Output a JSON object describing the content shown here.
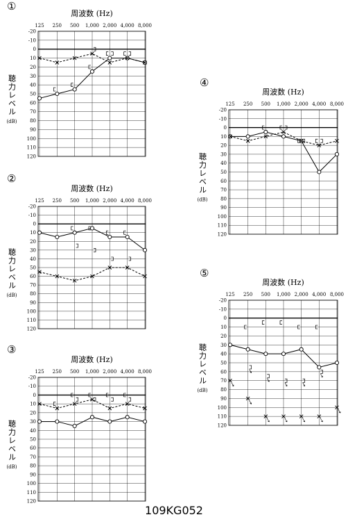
{
  "chart_data": [
    {
      "type": "line",
      "panel": "①",
      "title": "周波数 (Hz)",
      "ylabel": "聴力レベル",
      "yunit": "(dB)",
      "categories": [
        "125",
        "250",
        "500",
        "1,000",
        "2,000",
        "4,000",
        "8,000"
      ],
      "ylim": [
        -20,
        120
      ],
      "yticks": [
        -20,
        -10,
        0,
        10,
        20,
        30,
        40,
        50,
        60,
        70,
        80,
        90,
        100,
        110,
        120
      ],
      "grid": true,
      "series": [
        {
          "marker": "o",
          "dash": false,
          "connected": true,
          "color": "#000",
          "values": [
            55,
            50,
            45,
            25,
            10,
            10,
            15
          ]
        },
        {
          "marker": "x",
          "dash": true,
          "connected": true,
          "color": "#000",
          "values": [
            10,
            15,
            10,
            5,
            15,
            10,
            15
          ]
        },
        {
          "marker": "[",
          "dash": false,
          "connected": false,
          "color": "#000",
          "values": [
            null,
            45,
            40,
            20,
            5,
            5,
            null
          ]
        },
        {
          "marker": "]",
          "dash": false,
          "connected": false,
          "color": "#000",
          "values": [
            null,
            null,
            null,
            0,
            5,
            5,
            null
          ]
        }
      ]
    },
    {
      "type": "line",
      "panel": "②",
      "title": "周波数 (Hz)",
      "ylabel": "聴力レベル",
      "yunit": "(dB)",
      "categories": [
        "125",
        "250",
        "500",
        "1,000",
        "2,000",
        "4,000",
        "8,000"
      ],
      "ylim": [
        -20,
        120
      ],
      "yticks": [
        -20,
        -10,
        0,
        10,
        20,
        30,
        40,
        50,
        60,
        70,
        80,
        90,
        100,
        110,
        120
      ],
      "grid": true,
      "series": [
        {
          "marker": "o",
          "dash": false,
          "connected": true,
          "color": "#000",
          "values": [
            10,
            15,
            10,
            5,
            15,
            15,
            30
          ]
        },
        {
          "marker": "x",
          "dash": true,
          "connected": true,
          "color": "#000",
          "values": [
            55,
            60,
            65,
            60,
            50,
            50,
            60
          ]
        },
        {
          "marker": "[",
          "dash": false,
          "connected": false,
          "color": "#000",
          "values": [
            null,
            null,
            5,
            5,
            10,
            10,
            null
          ]
        },
        {
          "marker": "]",
          "dash": false,
          "connected": false,
          "color": "#000",
          "values": [
            null,
            null,
            25,
            30,
            40,
            40,
            null
          ]
        }
      ]
    },
    {
      "type": "line",
      "panel": "③",
      "title": "周波数 (Hz)",
      "ylabel": "聴力レベル",
      "yunit": "(dB)",
      "categories": [
        "125",
        "250",
        "500",
        "1,000",
        "2,000",
        "4,000",
        "8,000"
      ],
      "ylim": [
        -20,
        120
      ],
      "yticks": [
        -20,
        -10,
        0,
        10,
        20,
        30,
        40,
        50,
        60,
        70,
        80,
        90,
        100,
        110,
        120
      ],
      "grid": true,
      "series": [
        {
          "marker": "o",
          "dash": false,
          "connected": true,
          "color": "#000",
          "values": [
            30,
            30,
            35,
            25,
            30,
            25,
            30
          ]
        },
        {
          "marker": "x",
          "dash": true,
          "connected": true,
          "color": "#000",
          "values": [
            10,
            15,
            10,
            5,
            15,
            10,
            15
          ]
        },
        {
          "marker": "[",
          "dash": false,
          "connected": false,
          "color": "#000",
          "values": [
            null,
            10,
            0,
            0,
            0,
            0,
            null
          ]
        },
        {
          "marker": "]",
          "dash": false,
          "connected": false,
          "color": "#000",
          "values": [
            null,
            null,
            5,
            5,
            5,
            5,
            null
          ]
        }
      ]
    },
    {
      "type": "line",
      "panel": "④",
      "title": "周波数 (Hz)",
      "ylabel": "聴力レベル",
      "yunit": "(dB)",
      "categories": [
        "125",
        "250",
        "500",
        "1,000",
        "2,000",
        "4,000",
        "8,000"
      ],
      "ylim": [
        -20,
        120
      ],
      "yticks": [
        -20,
        -10,
        0,
        10,
        20,
        30,
        40,
        50,
        60,
        70,
        80,
        90,
        100,
        110,
        120
      ],
      "grid": true,
      "series": [
        {
          "marker": "o",
          "dash": false,
          "connected": true,
          "color": "#000",
          "values": [
            10,
            10,
            5,
            10,
            15,
            50,
            30
          ]
        },
        {
          "marker": "x",
          "dash": true,
          "connected": true,
          "color": "#000",
          "values": [
            10,
            15,
            10,
            5,
            15,
            20,
            15
          ]
        },
        {
          "marker": "[",
          "dash": false,
          "connected": false,
          "color": "#000",
          "values": [
            null,
            null,
            0,
            0,
            15,
            15,
            null
          ]
        },
        {
          "marker": "]",
          "dash": false,
          "connected": false,
          "color": "#000",
          "values": [
            null,
            null,
            null,
            0,
            15,
            15,
            null
          ]
        }
      ]
    },
    {
      "type": "line",
      "panel": "⑤",
      "title": "周波数 (Hz)",
      "ylabel": "聴力レベル",
      "yunit": "(dB)",
      "categories": [
        "125",
        "250",
        "500",
        "1,000",
        "2,000",
        "4,000",
        "8,000"
      ],
      "ylim": [
        -20,
        120
      ],
      "yticks": [
        -20,
        -10,
        0,
        10,
        20,
        30,
        40,
        50,
        60,
        70,
        80,
        90,
        100,
        110,
        120
      ],
      "grid": true,
      "series": [
        {
          "marker": "o",
          "dash": false,
          "connected": true,
          "color": "#000",
          "values": [
            30,
            35,
            40,
            40,
            35,
            55,
            50
          ]
        },
        {
          "marker": "x",
          "dash": false,
          "connected": false,
          "arrow": true,
          "color": "#000",
          "values": [
            70,
            90,
            110,
            110,
            110,
            110,
            100
          ]
        },
        {
          "marker": "[",
          "dash": false,
          "connected": false,
          "color": "#000",
          "values": [
            null,
            10,
            5,
            5,
            10,
            10,
            null
          ]
        },
        {
          "marker": "]",
          "dash": false,
          "connected": false,
          "arrow": true,
          "color": "#000",
          "values": [
            null,
            55,
            65,
            70,
            70,
            60,
            null
          ]
        }
      ]
    }
  ],
  "footer": "109KG052"
}
